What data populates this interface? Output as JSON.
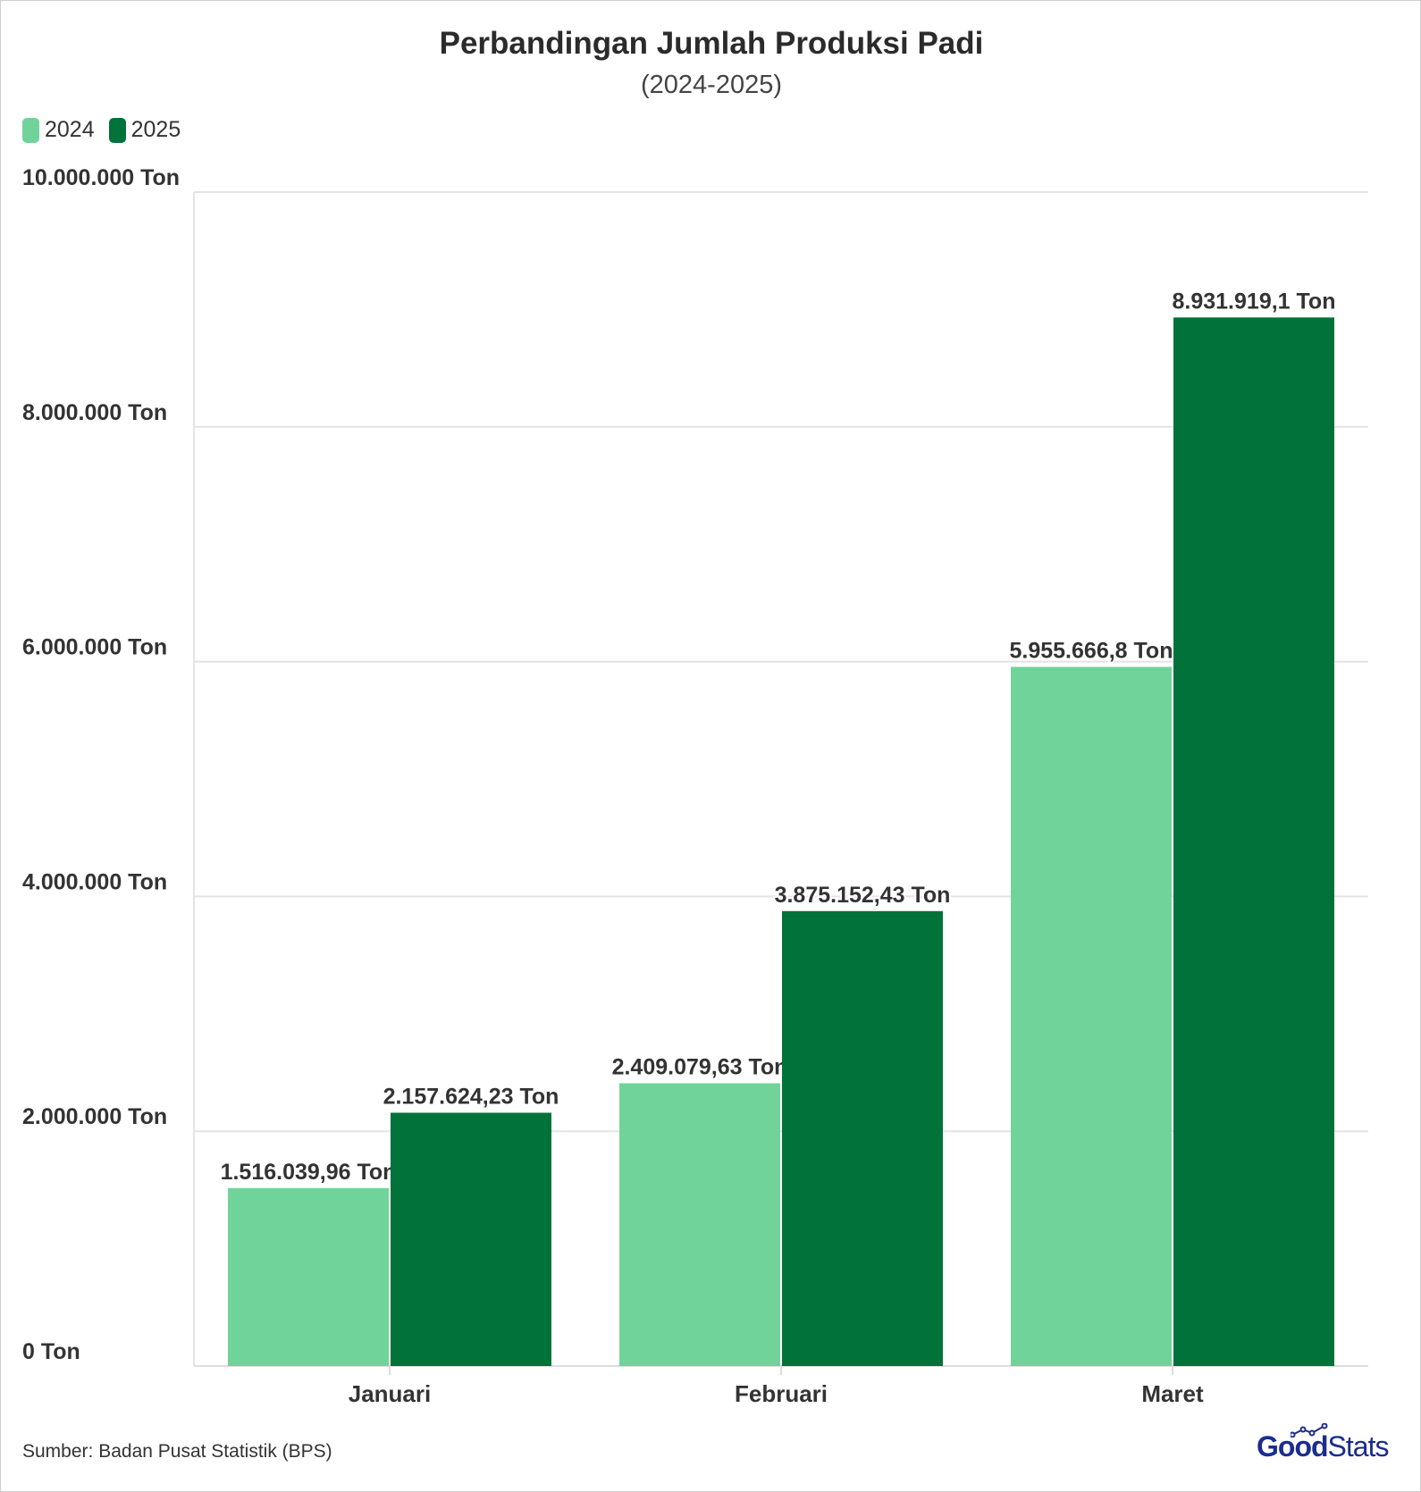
{
  "chart_data": {
    "type": "bar",
    "title": "Perbandingan Jumlah Produksi Padi",
    "subtitle": "(2024-2025)",
    "categories": [
      "Januari",
      "Februari",
      "Maret"
    ],
    "series": [
      {
        "name": "2024",
        "color": "#70d49a",
        "values": [
          1516039.96,
          2409079.63,
          5955666.8
        ],
        "labels": [
          "1.516.039,96 Ton",
          "2.409.079,63 Ton",
          "5.955.666,8 Ton"
        ]
      },
      {
        "name": "2025",
        "color": "#01723a",
        "values": [
          2157624.23,
          3875152.43,
          8931919.1
        ],
        "labels": [
          "2.157.624,23 Ton",
          "3.875.152,43 Ton",
          "8.931.919,1 Ton"
        ]
      }
    ],
    "ylim": [
      0,
      10000000
    ],
    "yticks": [
      0,
      2000000,
      4000000,
      6000000,
      8000000,
      10000000
    ],
    "ytick_labels": [
      "0 Ton",
      "2.000.000 Ton",
      "4.000.000 Ton",
      "6.000.000 Ton",
      "8.000.000 Ton",
      "10.000.000 Ton"
    ],
    "xlabel": "",
    "ylabel": "",
    "grid": true,
    "legend": "top-left"
  },
  "source": "Sumber: Badan Pusat Statistik (BPS)",
  "logo": {
    "good": "Good",
    "stats": "Stats"
  }
}
